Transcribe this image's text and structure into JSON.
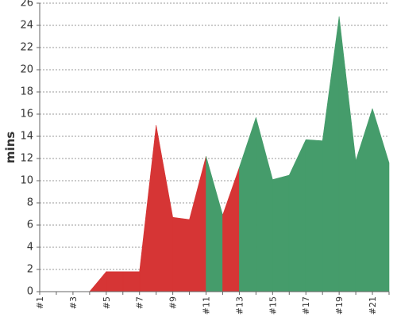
{
  "chart_data": {
    "type": "area",
    "title": "",
    "xlabel": "",
    "ylabel": "mins",
    "ylim": [
      0,
      26
    ],
    "y_ticks": [
      0,
      2,
      4,
      6,
      8,
      10,
      12,
      14,
      16,
      18,
      20,
      22,
      24,
      26
    ],
    "x_labels": [
      "#1",
      "#3",
      "#5",
      "#7",
      "#9",
      "#11",
      "#13",
      "#15",
      "#17",
      "#19",
      "#21"
    ],
    "grid": true,
    "legend": "none",
    "x": [
      1,
      2,
      3,
      4,
      5,
      6,
      7,
      8,
      9,
      10,
      11,
      12,
      13,
      14,
      15,
      16,
      17,
      18,
      19,
      20,
      21,
      22
    ],
    "values": [
      0,
      0,
      0,
      0,
      1.8,
      1.8,
      1.8,
      15,
      6.7,
      6.5,
      12.2,
      6.9,
      11.2,
      15.7,
      10.1,
      10.5,
      13.7,
      13.6,
      24.8,
      11.8,
      16.5,
      11.6
    ],
    "colors": [
      "#d63535",
      "#d63535",
      "#d63535",
      "#d63535",
      "#d63535",
      "#d63535",
      "#d63535",
      "#d63535",
      "#d63535",
      "#d63535",
      "#459c6b",
      "#d63535",
      "#459c6b",
      "#459c6b",
      "#459c6b",
      "#459c6b",
      "#459c6b",
      "#459c6b",
      "#459c6b",
      "#459c6b",
      "#459c6b",
      "#459c6b"
    ]
  }
}
